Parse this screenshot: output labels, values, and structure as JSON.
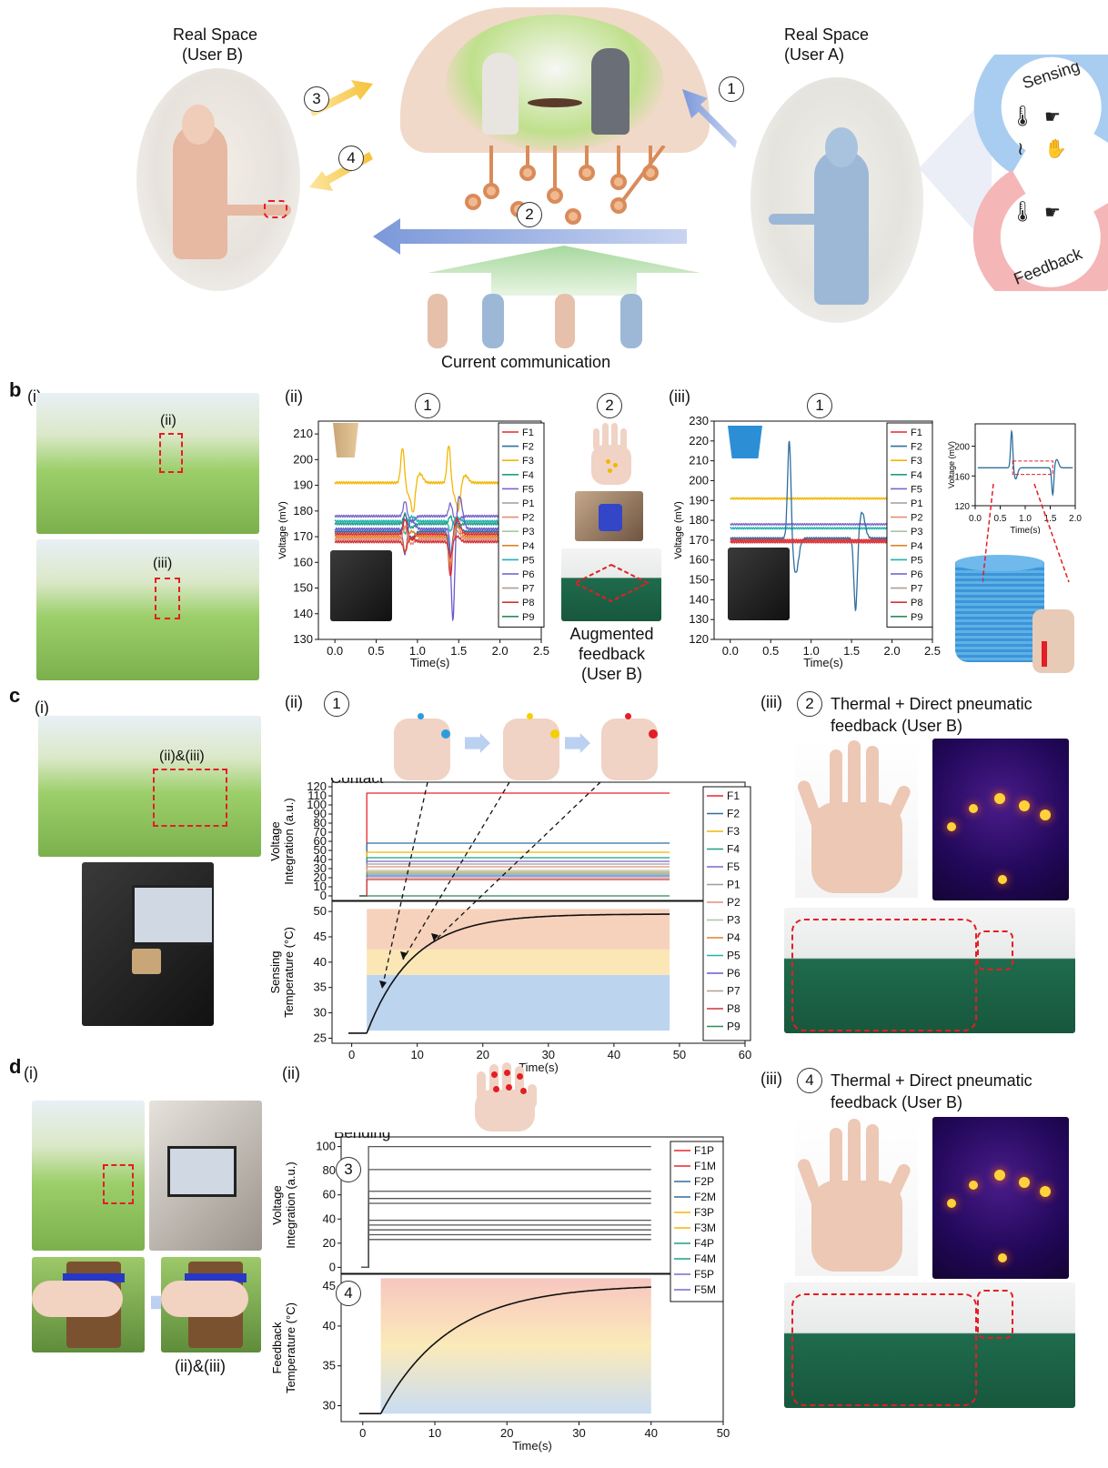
{
  "panel_a": {
    "real_space_b": "Real Space",
    "user_b": "(User B)",
    "real_space_a": "Real Space",
    "user_a": "(User A)",
    "sensing": "Sensing",
    "feedback": "Feedback",
    "current_communication": "Current communication",
    "steps": [
      "1",
      "2",
      "3",
      "4"
    ]
  },
  "panel_b": {
    "label": "b",
    "sub_i": "(i)",
    "sub_ii": "(ii)",
    "sub_iii": "(iii)",
    "tag_ii": "(ii)",
    "tag_iii": "(iii)",
    "augmented": [
      "Augmented",
      "feedback",
      "(User B)"
    ]
  },
  "panel_c": {
    "label": "c",
    "sub_i": "(i)",
    "sub_ii": "(ii)",
    "sub_iii": "(iii)",
    "tag": "(ii)&(iii)",
    "thermal_title": [
      "Thermal + Direct pneumatic",
      "feedback (User B)"
    ],
    "contact": "Contact"
  },
  "panel_d": {
    "label": "d",
    "sub_i": "(i)",
    "sub_ii": "(ii)",
    "sub_iii": "(iii)",
    "tag": "(ii)&(iii)",
    "thermal_title": [
      "Thermal + Direct pneumatic",
      "feedback (User B)"
    ],
    "bending": "Bending"
  },
  "colors": {
    "F1": "#e8262c",
    "F2": "#2f6f9f",
    "F3": "#f2b705",
    "F4": "#1f9e89",
    "F5": "#7b68c8",
    "P1": "#9e9e9e",
    "P2": "#e58c7a",
    "P3": "#a9c7a2",
    "P4": "#e0822a",
    "P5": "#20b2aa",
    "P6": "#6a5acd",
    "P7": "#b0a090",
    "P8": "#d0343a",
    "P9": "#2e8b57",
    "blue_arrow": "#7b98d9",
    "yellow_arrow": "#f5c23a",
    "green_arrow": "#a7d89e"
  },
  "chart_data": [
    {
      "id": "b-ii",
      "type": "line",
      "xlabel": "Time(s)",
      "ylabel": "Voltage (mV)",
      "xlim": [
        -0.2,
        2.5
      ],
      "ylim": [
        130,
        215
      ],
      "xticks": [
        "0.0",
        "0.5",
        "1.0",
        "1.5",
        "2.0",
        "2.5"
      ],
      "yticks": [
        "130",
        "140",
        "150",
        "160",
        "170",
        "180",
        "190",
        "200",
        "210"
      ],
      "legend": [
        "F1",
        "F2",
        "F3",
        "F4",
        "F5",
        "P1",
        "P2",
        "P3",
        "P4",
        "P5",
        "P6",
        "P7",
        "P8",
        "P9"
      ],
      "legend_position": "right",
      "series": [
        {
          "name": "F3",
          "baseline": 191,
          "events": [
            [
              0.82,
              14
            ],
            [
              0.95,
              -10
            ],
            [
              1.38,
              15
            ],
            [
              1.5,
              -8
            ]
          ]
        },
        {
          "name": "F5",
          "baseline": 178,
          "events": [
            [
              0.85,
              6
            ],
            [
              1.4,
              5
            ]
          ]
        },
        {
          "name": "P5",
          "baseline": 176,
          "events": [
            [
              0.85,
              -5
            ],
            [
              1.4,
              -4
            ]
          ]
        },
        {
          "name": "F4",
          "baseline": 175,
          "events": [
            [
              0.85,
              4
            ],
            [
              1.4,
              3
            ]
          ]
        },
        {
          "name": "P6",
          "baseline": 173,
          "events": [
            [
              0.85,
              -10
            ],
            [
              1.43,
              -36
            ]
          ]
        },
        {
          "name": "F2",
          "baseline": 172,
          "events": [
            [
              0.85,
              7
            ],
            [
              1.4,
              -10
            ]
          ]
        },
        {
          "name": "F1",
          "baseline": 171,
          "events": [
            [
              0.85,
              6
            ],
            [
              1.4,
              -17
            ]
          ]
        },
        {
          "name": "P4",
          "baseline": 170,
          "events": [
            [
              0.85,
              -6
            ],
            [
              1.4,
              -12
            ]
          ]
        },
        {
          "name": "P2",
          "baseline": 169,
          "events": [
            [
              0.85,
              5
            ],
            [
              1.4,
              -9
            ]
          ]
        },
        {
          "name": "P8",
          "baseline": 168,
          "events": [
            [
              0.85,
              -4
            ],
            [
              1.4,
              -6
            ]
          ]
        }
      ]
    },
    {
      "id": "b-iii-main",
      "type": "line",
      "xlabel": "Time(s)",
      "ylabel": "Voltage (mV)",
      "xlim": [
        -0.2,
        2.5
      ],
      "ylim": [
        120,
        230
      ],
      "xticks": [
        "0.0",
        "0.5",
        "1.0",
        "1.5",
        "2.0",
        "2.5"
      ],
      "yticks": [
        "120",
        "130",
        "140",
        "150",
        "160",
        "170",
        "180",
        "190",
        "200",
        "210",
        "220",
        "230"
      ],
      "legend": [
        "F1",
        "F2",
        "F3",
        "F4",
        "F5",
        "P1",
        "P2",
        "P3",
        "P4",
        "P5",
        "P6",
        "P7",
        "P8",
        "P9"
      ],
      "legend_position": "right",
      "series": [
        {
          "name": "F3",
          "baseline": 191,
          "events": []
        },
        {
          "name": "F5",
          "baseline": 178,
          "events": []
        },
        {
          "name": "P5",
          "baseline": 176,
          "events": []
        },
        {
          "name": "F2",
          "baseline": 171,
          "events": [
            [
              0.73,
              50
            ],
            [
              1.55,
              -37
            ]
          ]
        },
        {
          "name": "F1",
          "baseline": 170,
          "events": []
        },
        {
          "name": "P8",
          "baseline": 169,
          "events": []
        }
      ]
    },
    {
      "id": "b-iii-inset",
      "type": "line",
      "xlabel": "Time(s)",
      "ylabel": "Voltage (mV)",
      "xlim": [
        0,
        2
      ],
      "ylim": [
        120,
        230
      ],
      "xticks": [
        "0.0",
        "0.5",
        "1.0",
        "1.5",
        "2.0"
      ],
      "yticks": [
        "120",
        "160",
        "200"
      ],
      "series": [
        {
          "name": "F2",
          "baseline": 171,
          "events": [
            [
              0.73,
              50
            ],
            [
              1.55,
              -37
            ]
          ]
        }
      ]
    },
    {
      "id": "c-ii-top",
      "type": "line",
      "ylabel": "Voltage Integration (a.u.)",
      "xlim": [
        -3,
        60
      ],
      "ylim": [
        -5,
        125
      ],
      "yticks": [
        "0",
        "10",
        "20",
        "30",
        "40",
        "50",
        "60",
        "70",
        "80",
        "90",
        "100",
        "110",
        "120"
      ],
      "step_x": 2.3,
      "end_x": 48.5,
      "legend": [
        "F1",
        "F2",
        "F3",
        "F4",
        "F5",
        "P1",
        "P2",
        "P3",
        "P4",
        "P5",
        "P6",
        "P7",
        "P8",
        "P9"
      ],
      "series": [
        {
          "name": "F1",
          "value": 113
        },
        {
          "name": "F2",
          "value": 58
        },
        {
          "name": "F3",
          "value": 48
        },
        {
          "name": "F4",
          "value": 42
        },
        {
          "name": "F5",
          "value": 38
        },
        {
          "name": "P1",
          "value": 35
        },
        {
          "name": "P2",
          "value": 32
        },
        {
          "name": "P3",
          "value": 28
        },
        {
          "name": "P4",
          "value": 26
        },
        {
          "name": "P5",
          "value": 24
        },
        {
          "name": "P6",
          "value": 22
        },
        {
          "name": "P7",
          "value": 20
        },
        {
          "name": "P8",
          "value": 18
        },
        {
          "name": "P9",
          "value": 0
        }
      ]
    },
    {
      "id": "c-ii-bottom",
      "type": "line",
      "xlabel": "Time(s)",
      "ylabel": "Sensing Temperature (°C)",
      "xlim": [
        -3,
        60
      ],
      "ylim": [
        24,
        52
      ],
      "xticks": [
        "0",
        "10",
        "20",
        "30",
        "40",
        "50",
        "60"
      ],
      "yticks": [
        "25",
        "30",
        "35",
        "40",
        "45",
        "50"
      ],
      "curve": {
        "t0": 2.3,
        "start": 26,
        "end": 49.5,
        "tau": 7,
        "end_x": 48.5
      },
      "bands": [
        {
          "from": 26.5,
          "to": 37.5,
          "color": "#bcd4ee"
        },
        {
          "from": 37.5,
          "to": 42.5,
          "color": "#fbe6b5"
        },
        {
          "from": 42.5,
          "to": 50.5,
          "color": "#f6d2bd"
        }
      ]
    },
    {
      "id": "d-ii-top",
      "type": "line",
      "ylabel": "Voltage Integration (a.u.)",
      "xlim": [
        -3,
        50
      ],
      "ylim": [
        -5,
        108
      ],
      "yticks": [
        "0",
        "20",
        "40",
        "60",
        "80",
        "100"
      ],
      "step_x": 0.8,
      "end_x": 40,
      "legend": [
        "F1P",
        "F1M",
        "F2P",
        "F2M",
        "F3P",
        "F3M",
        "F4P",
        "F4M",
        "F5P",
        "F5M"
      ],
      "series": [
        {
          "name": "F1P",
          "value": 23
        },
        {
          "name": "F1M",
          "value": 27
        },
        {
          "name": "F2P",
          "value": 31
        },
        {
          "name": "F2M",
          "value": 35
        },
        {
          "name": "F3P",
          "value": 39
        },
        {
          "name": "F3M",
          "value": 53
        },
        {
          "name": "F4P",
          "value": 57
        },
        {
          "name": "F4M",
          "value": 63
        },
        {
          "name": "F5P",
          "value": 81
        },
        {
          "name": "F5M",
          "value": 100
        }
      ]
    },
    {
      "id": "d-ii-bottom",
      "type": "line",
      "xlabel": "Time(s)",
      "ylabel": "Feedback Temperature (°C)",
      "xlim": [
        -3,
        50
      ],
      "ylim": [
        28,
        46.5
      ],
      "xticks": [
        "0",
        "10",
        "20",
        "30",
        "40",
        "50"
      ],
      "yticks": [
        "30",
        "35",
        "40",
        "45"
      ],
      "curve": {
        "t0": 2.5,
        "start": 29,
        "end": 45.2,
        "tau": 9.5,
        "end_x": 40
      },
      "bands": [
        {
          "from": 29,
          "to": 46,
          "gradient": true
        }
      ]
    }
  ]
}
